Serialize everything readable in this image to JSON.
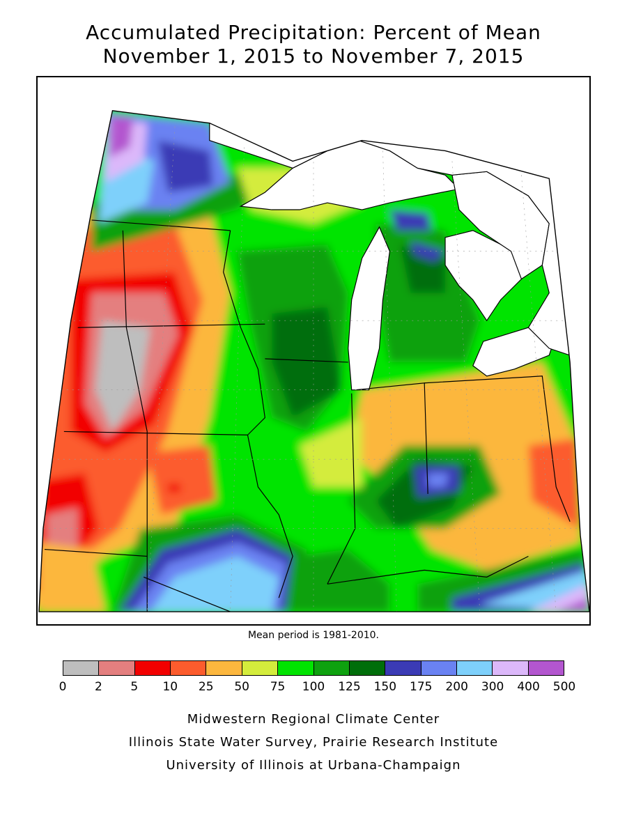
{
  "title_line1": "Accumulated Precipitation: Percent of Mean",
  "title_line2": "November 1, 2015 to November 7, 2015",
  "mean_note": "Mean period is 1981-2010.",
  "legend": {
    "ticks": [
      "0",
      "2",
      "5",
      "10",
      "25",
      "50",
      "75",
      "100",
      "125",
      "150",
      "175",
      "200",
      "300",
      "400",
      "500"
    ],
    "colors": [
      "#bebebe",
      "#e47f7f",
      "#f20000",
      "#fc5c2d",
      "#fcb73e",
      "#d4ec3c",
      "#00e400",
      "#0ea10f",
      "#006e0a",
      "#3b3bb5",
      "#6a82f2",
      "#7ed0fb",
      "#dcb8fa",
      "#b356cf"
    ]
  },
  "credits": {
    "line1": "Midwestern Regional Climate Center",
    "line2": "Illinois State Water Survey, Prairie Research Institute",
    "line3": "University of Illinois at Urbana-Champaign"
  }
}
